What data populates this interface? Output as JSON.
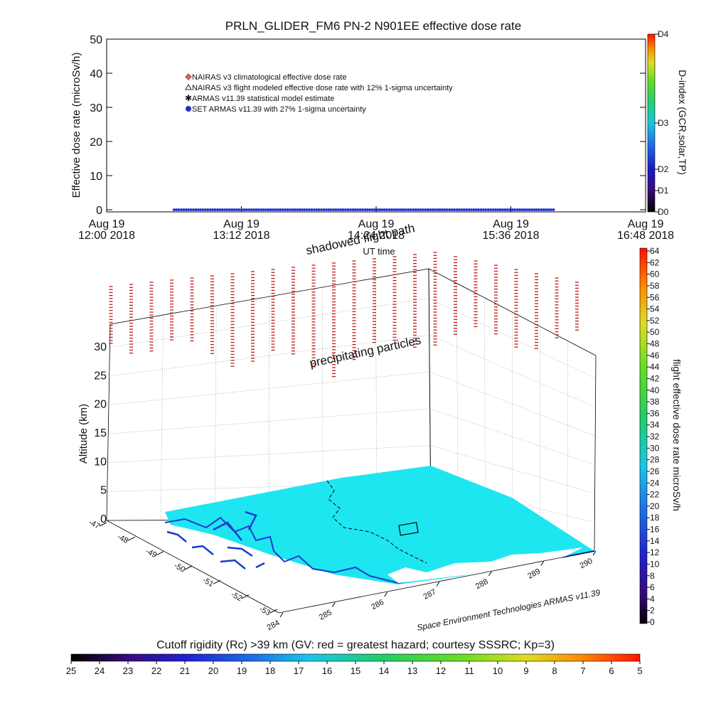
{
  "chart_data": [
    {
      "type": "scatter",
      "title": "PRLN_GLIDER_FM6 PN-2 N901EE effective dose rate",
      "xlabel": "UT time",
      "ylabel": "Effective dose rate (microSv/h)",
      "ylim": [
        0,
        50
      ],
      "y_ticks": [
        "0",
        "10",
        "20",
        "30",
        "40",
        "50"
      ],
      "x_ticks": [
        {
          "date": "Aug 19",
          "time": "12:00 2018"
        },
        {
          "date": "Aug 19",
          "time": "13:12 2018"
        },
        {
          "date": "Aug 19",
          "time": "14:24 2018"
        },
        {
          "date": "Aug 19",
          "time": "15:36 2018"
        },
        {
          "date": "Aug 19",
          "time": "16:48 2018"
        }
      ],
      "legend": [
        {
          "label": "NAIRAS v3 climatological effective dose rate",
          "color": "#e06a6a",
          "marker": "diamond"
        },
        {
          "label": "NAIRAS v3 flight modeled effective dose rate with 12% 1-sigma uncertainty",
          "color": "#222222",
          "marker": "triangle"
        },
        {
          "label": "ARMAS v11.39 statistical model estimate",
          "color": "#33cc33",
          "marker": "star"
        },
        {
          "label": "SET ARMAS v11.39 with 27% 1-sigma uncertainty",
          "color": "#1f2fd0",
          "marker": "dot"
        }
      ],
      "legend_placement": "top-left",
      "series": [
        {
          "name": "SET ARMAS v11.39 with 27% 1-sigma uncertainty",
          "x_range": [
            "12:36",
            "16:00"
          ],
          "y": 0
        }
      ],
      "dindex_axis": {
        "label": "D-index (GCR,solar,TP)",
        "ticks": [
          {
            "label": "D0",
            "value": 0
          },
          {
            "label": "D1",
            "value": 6
          },
          {
            "label": "D2",
            "value": 12
          },
          {
            "label": "D3",
            "value": 25
          },
          {
            "label": "D4",
            "value": 50
          }
        ]
      }
    },
    {
      "type": "scatter",
      "zlabel": "Altitude (km)",
      "z_ticks": [
        "0",
        "5",
        "10",
        "15",
        "20",
        "25",
        "30"
      ],
      "lat_ticks": [
        "-47",
        "-48",
        "-49",
        "-50",
        "-51",
        "-52",
        "-53"
      ],
      "lon_ticks": [
        "284",
        "285",
        "286",
        "287",
        "288",
        "289",
        "290"
      ],
      "annotations": [
        "shadowed flight path",
        "precipitating particles"
      ],
      "credit": "Space Environment Technologies ARMAS v11.39",
      "colorbar_dose": {
        "label": "flight effective dose rate microSv/h",
        "ticks": [
          "0",
          "2",
          "4",
          "6",
          "8",
          "10",
          "12",
          "14",
          "16",
          "18",
          "20",
          "22",
          "24",
          "26",
          "28",
          "30",
          "32",
          "34",
          "36",
          "38",
          "40",
          "42",
          "44",
          "46",
          "48",
          "50",
          "52",
          "54",
          "56",
          "58",
          "60",
          "62",
          "64"
        ]
      }
    },
    {
      "type": "heatmap",
      "caption": "Cutoff rigidity (Rc) >39 km (GV: red = greatest hazard; courtesy SSSRC; Kp=3)",
      "ticks": [
        "25",
        "24",
        "23",
        "22",
        "21",
        "20",
        "19",
        "18",
        "17",
        "16",
        "15",
        "14",
        "13",
        "12",
        "11",
        "10",
        "9",
        "8",
        "7",
        "6",
        "5"
      ]
    }
  ]
}
